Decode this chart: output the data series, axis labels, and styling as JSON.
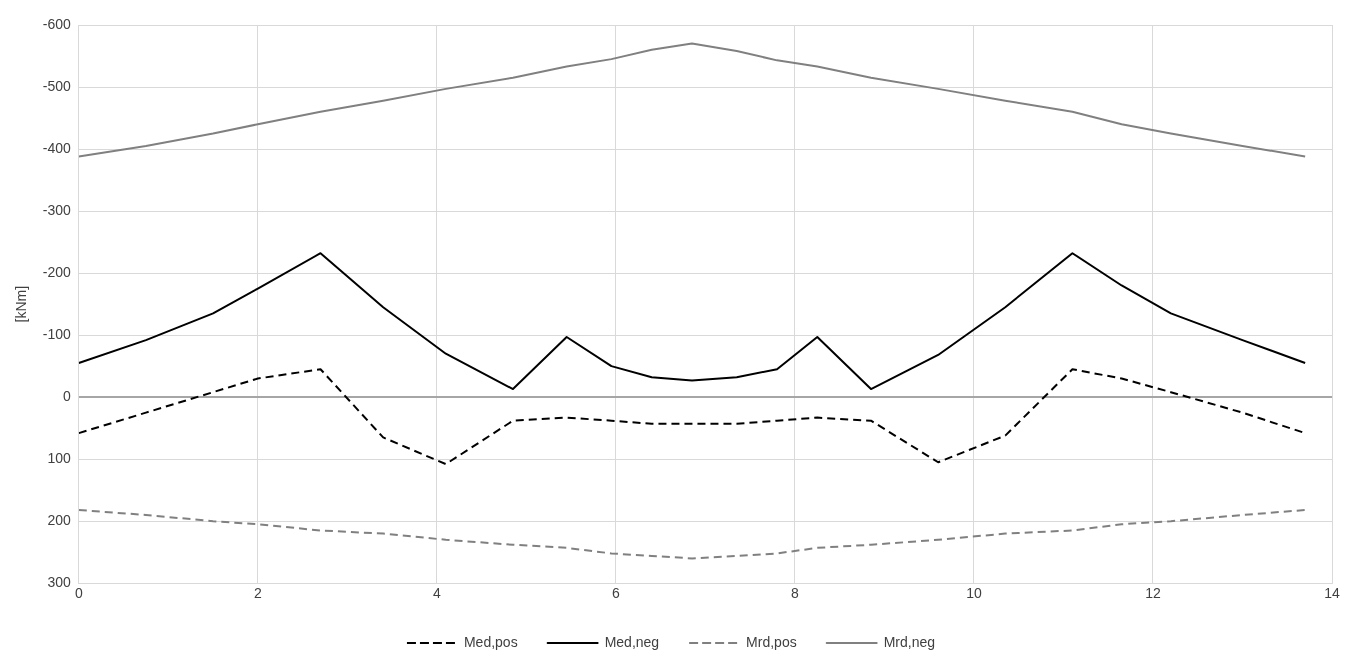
{
  "chart_data": {
    "type": "line",
    "ylabel": "[kNm]",
    "x": [
      0,
      0.75,
      1.5,
      2.0,
      2.7,
      3.4,
      4.1,
      4.85,
      5.45,
      5.95,
      6.4,
      6.85,
      7.35,
      7.8,
      8.25,
      8.85,
      9.6,
      10.35,
      11.1,
      11.65,
      12.2,
      13.0,
      13.7
    ],
    "xlim": [
      0,
      14
    ],
    "xticks": [
      0,
      2,
      4,
      6,
      8,
      10,
      12,
      14
    ],
    "ylim": [
      300,
      -600
    ],
    "yticks": [
      300,
      200,
      100,
      0,
      -100,
      -200,
      -300,
      -400,
      -500,
      -600
    ],
    "grid": true,
    "legend": "bottom",
    "marker": "none",
    "series": [
      {
        "name": "Med,pos",
        "color": "#000000",
        "line_style": "dashed",
        "values": [
          58,
          25,
          -8,
          -30,
          -45,
          65,
          108,
          38,
          33,
          38,
          43,
          43,
          43,
          38,
          33,
          38,
          105,
          62,
          -45,
          -30,
          -8,
          25,
          58
        ]
      },
      {
        "name": "Med,neg",
        "color": "#000000",
        "line_style": "solid",
        "values": [
          -55,
          -92,
          -135,
          -175,
          -232,
          -145,
          -70,
          -13,
          -97,
          -50,
          -32,
          -27,
          -32,
          -45,
          -97,
          -13,
          -68,
          -145,
          -232,
          -180,
          -135,
          -92,
          -55
        ]
      },
      {
        "name": "Mrd,pos",
        "color": "#808080",
        "line_style": "dashed",
        "values": [
          182,
          190,
          200,
          205,
          215,
          220,
          230,
          238,
          243,
          252,
          256,
          260,
          256,
          252,
          243,
          238,
          230,
          220,
          215,
          205,
          200,
          190,
          182
        ]
      },
      {
        "name": "Mrd,neg",
        "color": "#808080",
        "line_style": "solid",
        "values": [
          -388,
          -405,
          -425,
          -440,
          -460,
          -478,
          -497,
          -515,
          -533,
          -545,
          -560,
          -570,
          -558,
          -543,
          -533,
          -515,
          -497,
          -478,
          -460,
          -440,
          -425,
          -405,
          -388
        ]
      }
    ]
  }
}
